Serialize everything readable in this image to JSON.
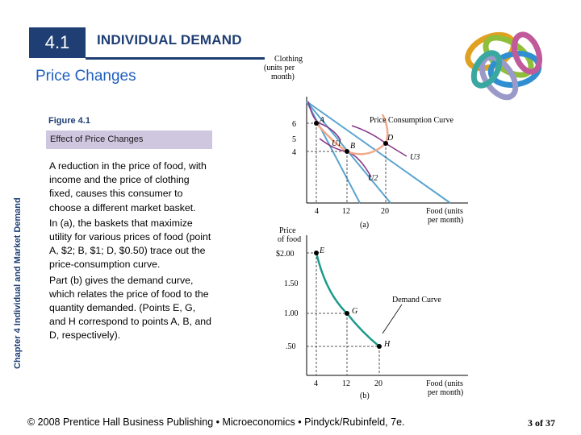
{
  "header": {
    "section_number": "4.1",
    "title": "INDIVIDUAL DEMAND",
    "subtitle": "Price Changes"
  },
  "side_label": "Chapter 4 Individual and Market Demand",
  "figure": {
    "label": "Figure 4.1",
    "caption": "Effect of Price Changes",
    "paragraphs": [
      "A reduction in the price of food, with income and the price of clothing fixed, causes this consumer to choose a different market basket.",
      "In (a), the baskets that maximize utility for various prices of food (point A, $2; B, $1; D, $0.50) trace out the price-consumption curve.",
      "Part (b) gives the demand curve, which relates the price of food to the quantity demanded. (Points E, G, and H correspond to points A, B, and D, respectively)."
    ]
  },
  "graph_a": {
    "y_axis_label_lines": [
      "Clothing",
      "(units per",
      "month)"
    ],
    "y_ticks": [
      "6",
      "5",
      "4"
    ],
    "x_ticks": [
      "4",
      "12",
      "20"
    ],
    "x_axis_label_lines": [
      "Food (units",
      "per month)"
    ],
    "panel_label": "(a)",
    "curve_label": "Price Consumption Curve",
    "points": [
      "A",
      "B",
      "D"
    ],
    "utility_labels": [
      "U1",
      "U2",
      "U3"
    ]
  },
  "graph_b": {
    "y_axis_label_lines": [
      "Price",
      "of food"
    ],
    "y_ticks": [
      "$2.00",
      "1.50",
      "1.00",
      ".50"
    ],
    "x_ticks": [
      "4",
      "12",
      "20"
    ],
    "x_axis_label_lines": [
      "Food (units",
      "per month)"
    ],
    "panel_label": "(b)",
    "curve_label": "Demand Curve",
    "points": [
      "E",
      "G",
      "H"
    ]
  },
  "footer": {
    "text": "© 2008 Prentice Hall Business Publishing  •  Microeconomics  •  Pindyck/Rubinfeld, 7e.",
    "page": "3 of 37"
  },
  "colors": {
    "navy": "#1f3f74",
    "subtitle_blue": "#1f5fbf",
    "caption_bg": "#cfc7e0",
    "budget_lines": "#5ba4d0",
    "indifference": "#8a3a88",
    "price_consumption": "#f2a98a",
    "demand_curve": "#1a9a8a"
  },
  "decoration": {
    "logo": "colored-rings-logo"
  }
}
